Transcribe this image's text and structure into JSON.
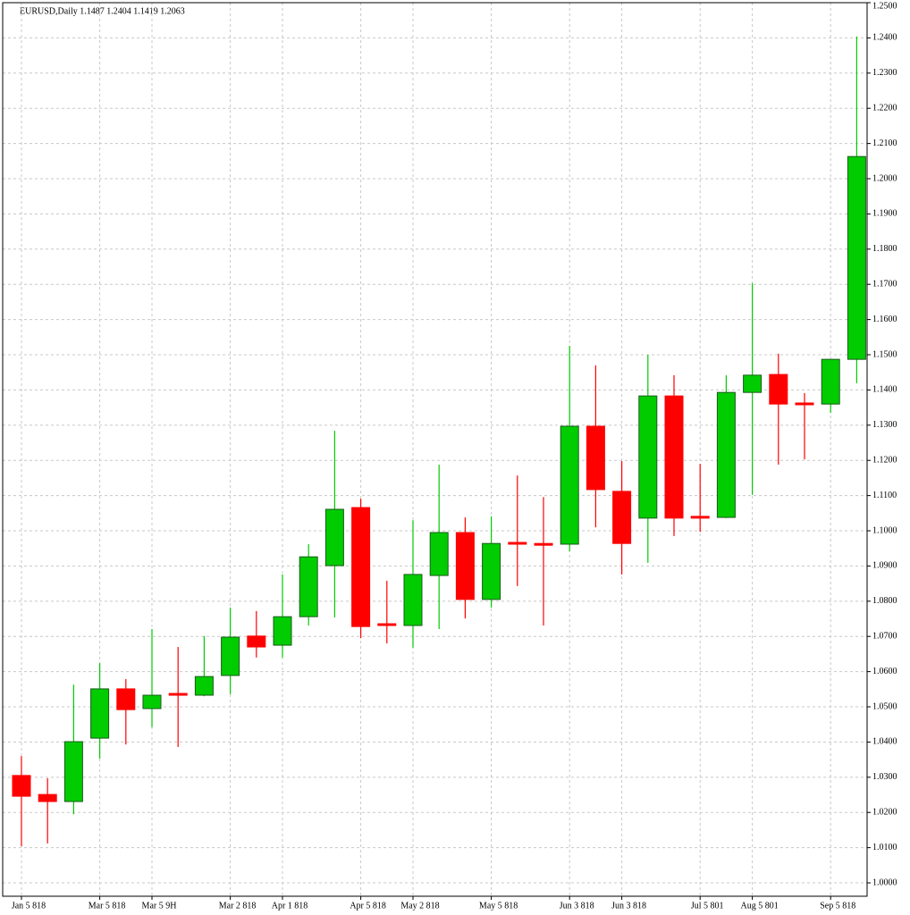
{
  "chart_data": {
    "type": "candlestick",
    "title": "EURUSD,Daily 1.1487 1.2404 1.1419 1.2063",
    "categories": [
      "Jan 5 818",
      null,
      null,
      "Mar 5 818",
      null,
      "Mar 5 9H",
      null,
      null,
      "Mar 2 818",
      null,
      "Apr 1 818",
      null,
      null,
      "Apr 5 818",
      null,
      "May 2 818",
      null,
      null,
      "May 5 818",
      null,
      null,
      "Jun 3 818",
      null,
      "Jun 3 818",
      null,
      null,
      "Jul 5 801",
      null,
      "Aug 5 801",
      null,
      null,
      "Sep 5 818",
      null
    ],
    "open": [
      1.0305,
      1.0251,
      1.0231,
      1.0411,
      1.0551,
      1.0495,
      1.0538,
      1.0533,
      1.0589,
      1.0701,
      1.0675,
      1.0756,
      1.0901,
      1.1066,
      1.0736,
      1.0731,
      1.0873,
      1.0995,
      1.0805,
      1.0967,
      1.0964,
      1.0962,
      1.1297,
      1.1112,
      1.1036,
      1.1383,
      1.1041,
      1.1038,
      1.1393,
      1.1444,
      1.1363,
      1.136,
      1.1487
    ],
    "high": [
      1.036,
      1.0297,
      1.0563,
      1.0624,
      1.0579,
      1.0721,
      1.067,
      1.0701,
      1.0782,
      1.0772,
      1.0876,
      1.0962,
      1.1284,
      1.1091,
      1.0858,
      1.103,
      1.1188,
      1.1038,
      1.1041,
      1.1157,
      1.1096,
      1.1525,
      1.147,
      1.1198,
      1.15,
      1.1442,
      1.119,
      1.1442,
      1.1703,
      1.1503,
      1.1391,
      1.1487,
      1.2404
    ],
    "low": [
      1.0104,
      1.0112,
      1.0195,
      1.0353,
      1.0393,
      1.0442,
      1.0386,
      1.053,
      1.0536,
      1.064,
      1.064,
      1.0731,
      1.0754,
      1.0695,
      1.068,
      1.0668,
      1.0721,
      1.0751,
      1.0782,
      1.0843,
      1.0731,
      1.0942,
      1.101,
      1.0876,
      1.0909,
      1.0985,
      1.0997,
      1.1036,
      1.1102,
      1.1188,
      1.1203,
      1.1335,
      1.1419
    ],
    "close": [
      1.0246,
      1.0231,
      1.0401,
      1.0551,
      1.0492,
      1.0533,
      1.0533,
      1.0586,
      1.0698,
      1.067,
      1.0756,
      1.0926,
      1.1061,
      1.0728,
      1.0731,
      1.0876,
      1.0995,
      1.0805,
      1.0964,
      1.0964,
      1.0962,
      1.1297,
      1.1117,
      1.0964,
      1.1383,
      1.1036,
      1.1036,
      1.1393,
      1.1442,
      1.136,
      1.1358,
      1.1487,
      1.2063
    ],
    "up_color": "#00cc00",
    "down_color": "#ff0000",
    "ylim": [
      0.9962,
      1.25
    ],
    "yticks": [
      {
        "value": 1.0,
        "label": "1.0000"
      },
      {
        "value": 1.01,
        "label": "1.0100"
      },
      {
        "value": 1.02,
        "label": "1.0200"
      },
      {
        "value": 1.03,
        "label": "1.0300"
      },
      {
        "value": 1.04,
        "label": "1.0400"
      },
      {
        "value": 1.05,
        "label": "1.0500"
      },
      {
        "value": 1.06,
        "label": "1.0600"
      },
      {
        "value": 1.07,
        "label": "1.0700"
      },
      {
        "value": 1.08,
        "label": "1.0800"
      },
      {
        "value": 1.09,
        "label": "1.0900"
      },
      {
        "value": 1.1,
        "label": "1.1000"
      },
      {
        "value": 1.11,
        "label": "1.1100"
      },
      {
        "value": 1.12,
        "label": "1.1200"
      },
      {
        "value": 1.13,
        "label": "1.1300"
      },
      {
        "value": 1.14,
        "label": "1.1400"
      },
      {
        "value": 1.15,
        "label": "1.1500"
      },
      {
        "value": 1.16,
        "label": "1.1600"
      },
      {
        "value": 1.17,
        "label": "1.1700"
      },
      {
        "value": 1.18,
        "label": "1.1800"
      },
      {
        "value": 1.19,
        "label": "1.1900"
      },
      {
        "value": 1.2,
        "label": "1.2000"
      },
      {
        "value": 1.21,
        "label": "1.2100"
      },
      {
        "value": 1.22,
        "label": "1.2200"
      },
      {
        "value": 1.23,
        "label": "1.2300"
      },
      {
        "value": 1.24,
        "label": "1.2400"
      },
      {
        "value": 1.25,
        "label": "1.2500"
      }
    ],
    "grid": true
  }
}
